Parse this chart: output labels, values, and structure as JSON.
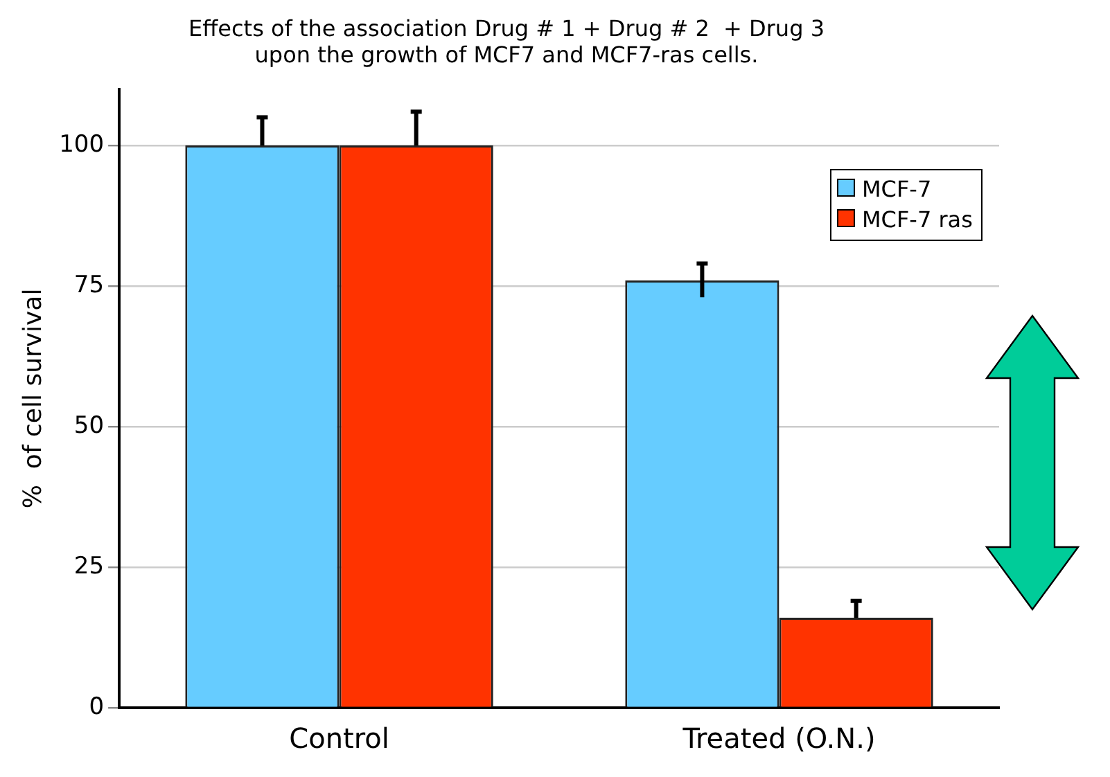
{
  "chart_data": {
    "type": "bar",
    "title": "Effects of the association Drug # 1 + Drug # 2  + Drug 3\nupon the growth of MCF7 and MCF7-ras cells.",
    "ylabel": "%  of cell survival",
    "categories": [
      "Control",
      "Treated (O.N.)"
    ],
    "series": [
      {
        "name": "MCF-7",
        "color": "#66ccff",
        "values": [
          100,
          76
        ],
        "errors": [
          [
            100,
            105
          ],
          [
            73,
            79
          ]
        ]
      },
      {
        "name": "MCF-7 ras",
        "color": "#ff3300",
        "values": [
          100,
          16
        ],
        "errors": [
          [
            100,
            106
          ],
          [
            16,
            19
          ]
        ]
      }
    ],
    "ylim": [
      0,
      110
    ],
    "yticks": [
      0,
      25,
      50,
      75,
      100
    ],
    "grid": "y",
    "legend": "top right"
  }
}
